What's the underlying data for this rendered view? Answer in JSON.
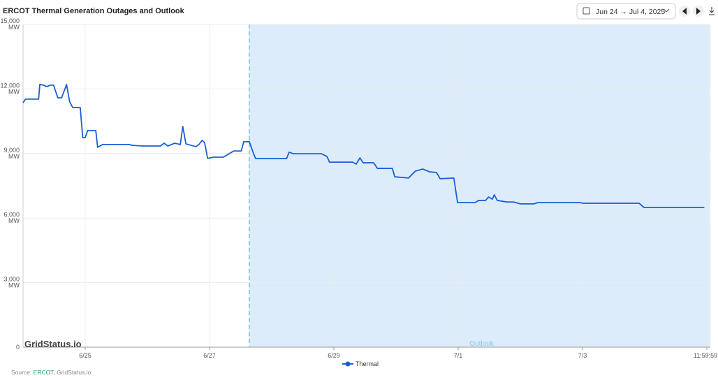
{
  "chart_data": {
    "type": "line",
    "title": "ERCOT Thermal Generation Outages and Outlook",
    "date_range": "Jun 24 → Jul 4, 2025",
    "x": [
      0,
      0.04,
      0.25,
      0.27,
      0.33,
      0.38,
      0.44,
      0.49,
      0.56,
      0.62,
      0.7,
      0.75,
      0.8,
      0.92,
      0.96,
      1,
      1.04,
      1.17,
      1.2,
      1.28,
      1.71,
      1.76,
      1.93,
      2.21,
      2.27,
      2.33,
      2.44,
      2.53,
      2.57,
      2.62,
      2.78,
      2.83,
      2.88,
      2.92,
      2.97,
      3.06,
      3.22,
      3.28,
      3.39,
      3.51,
      3.55,
      3.64,
      3.7,
      3.74,
      4.24,
      4.28,
      4.35,
      4.8,
      4.89,
      4.93,
      5.3,
      5.36,
      5.42,
      5.47,
      5.64,
      5.7,
      5.94,
      5.98,
      6.2,
      6.31,
      6.43,
      6.54,
      6.65,
      6.71,
      6.93,
      6.99,
      7.27,
      7.33,
      7.44,
      7.49,
      7.55,
      7.58,
      7.63,
      7.78,
      7.89,
      8,
      8.22,
      8.28,
      8.96,
      9.01,
      9.91,
      9.99,
      10.96
    ],
    "series": [
      {
        "name": "Thermal",
        "color": "#1c5fd4",
        "values": [
          11360,
          11530,
          11530,
          12210,
          12180,
          12110,
          12180,
          12180,
          11590,
          11590,
          12210,
          11400,
          11140,
          11140,
          9740,
          9740,
          10070,
          10070,
          9290,
          9420,
          9420,
          9380,
          9350,
          9350,
          9480,
          9350,
          9480,
          9420,
          10260,
          9450,
          9320,
          9420,
          9610,
          9510,
          8770,
          8830,
          8830,
          8930,
          9120,
          9120,
          9550,
          9550,
          9060,
          8770,
          8770,
          9060,
          8990,
          8990,
          8860,
          8600,
          8600,
          8510,
          8800,
          8570,
          8570,
          8310,
          8310,
          7920,
          7860,
          8180,
          8280,
          8150,
          8120,
          7830,
          7860,
          6720,
          6720,
          6820,
          6820,
          6980,
          6880,
          7080,
          6820,
          6750,
          6750,
          6660,
          6660,
          6720,
          6720,
          6690,
          6690,
          6490,
          6490
        ]
      }
    ],
    "xlim": [
      0,
      11
    ],
    "xticks": [
      {
        "value": 1,
        "label": "6/25"
      },
      {
        "value": 3,
        "label": "6/27"
      },
      {
        "value": 5,
        "label": "6/29"
      },
      {
        "value": 7,
        "label": "7/1"
      },
      {
        "value": 9,
        "label": "7/3"
      },
      {
        "value": 11,
        "label": "11:59:59"
      }
    ],
    "ylim": [
      0,
      15000
    ],
    "yticks": [
      0,
      {
        "value": 3000,
        "label": "3,000 MW"
      },
      {
        "value": 6000,
        "label": "6,000 MW"
      },
      {
        "value": 9000,
        "label": "9,000 MW"
      },
      {
        "value": 12000,
        "label": "12,000 MW"
      },
      {
        "value": 15000,
        "label": "15,000 MW"
      }
    ],
    "grid": true,
    "outlook_start": 3.64,
    "outlook_label": "Outlook",
    "watermark": "GridStatus.io"
  },
  "source": {
    "prefix": "Source: ",
    "link": "ERCOT",
    "suffix": ", GridStatus.io."
  }
}
